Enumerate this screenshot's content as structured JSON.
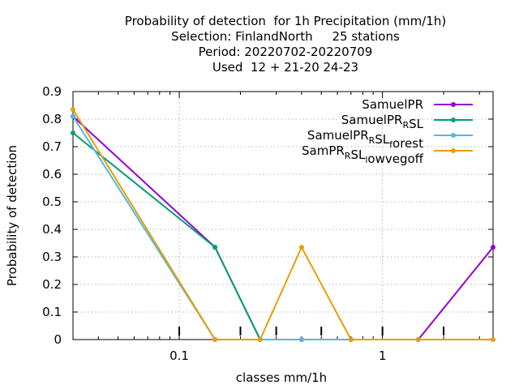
{
  "chart_data": {
    "type": "line",
    "title_lines": [
      "Probability of detection  for 1h Precipitation (mm/1h)",
      "Selection: FinlandNorth     25 stations",
      "Period: 20220702-20220709",
      "Used  12 + 21-20 24-23"
    ],
    "xlabel": "classes mm/1h",
    "ylabel": "Probability of detection",
    "x_scale": "log",
    "xlim": [
      0.03,
      3.5
    ],
    "ylim": [
      0,
      0.9
    ],
    "x_ticks": [
      {
        "value": 0.1,
        "label": "0.1"
      },
      {
        "value": 1,
        "label": "1"
      }
    ],
    "y_ticks": [
      {
        "value": 0,
        "label": "0"
      },
      {
        "value": 0.1,
        "label": "0.1"
      },
      {
        "value": 0.2,
        "label": "0.2"
      },
      {
        "value": 0.3,
        "label": "0.3"
      },
      {
        "value": 0.4,
        "label": "0.4"
      },
      {
        "value": 0.5,
        "label": "0.5"
      },
      {
        "value": 0.6,
        "label": "0.6"
      },
      {
        "value": 0.7,
        "label": "0.7"
      },
      {
        "value": 0.8,
        "label": "0.8"
      },
      {
        "value": 0.9,
        "label": "0.9"
      }
    ],
    "class_marks": [
      0.1,
      0.2,
      0.3,
      0.5,
      1,
      2
    ],
    "grid": true,
    "legend_position": "top-right",
    "series": [
      {
        "name": "SamuelPR",
        "label_parts": [
          [
            "SamuelPR",
            "n"
          ]
        ],
        "color": "#9400d3",
        "x": [
          0.03,
          0.15,
          0.25,
          0.4,
          0.7,
          1.5,
          3.5
        ],
        "y": [
          0.81,
          0.335,
          0,
          0,
          0,
          0,
          0.335
        ]
      },
      {
        "name": "SamuelPR_RSL",
        "label_parts": [
          [
            "SamuelPR",
            "n"
          ],
          [
            "R",
            "sub"
          ],
          [
            "SL",
            "n"
          ]
        ],
        "color": "#009e73",
        "x": [
          0.03,
          0.15,
          0.25
        ],
        "y": [
          0.75,
          0.335,
          0
        ]
      },
      {
        "name": "SamuelPR_RSL_forest",
        "label_parts": [
          [
            "SamuelPR",
            "n"
          ],
          [
            "R",
            "sub"
          ],
          [
            "SL",
            "n"
          ],
          [
            "f",
            "sub"
          ],
          [
            "orest",
            "n"
          ]
        ],
        "color": "#56b4e9",
        "x": [
          0.03,
          0.15,
          0.25,
          0.4,
          0.7
        ],
        "y": [
          0.81,
          0,
          0,
          0,
          0
        ]
      },
      {
        "name": "SamPR_RSL_lowvegoff",
        "label_parts": [
          [
            "SamPR",
            "n"
          ],
          [
            "R",
            "sub"
          ],
          [
            "SL",
            "n"
          ],
          [
            "l",
            "sub"
          ],
          [
            "owvegoff",
            "n"
          ]
        ],
        "color": "#e69f00",
        "x": [
          0.03,
          0.15,
          0.25,
          0.4,
          0.7,
          1.5,
          3.5
        ],
        "y": [
          0.835,
          0,
          0,
          0.335,
          0,
          0,
          0
        ]
      }
    ]
  }
}
